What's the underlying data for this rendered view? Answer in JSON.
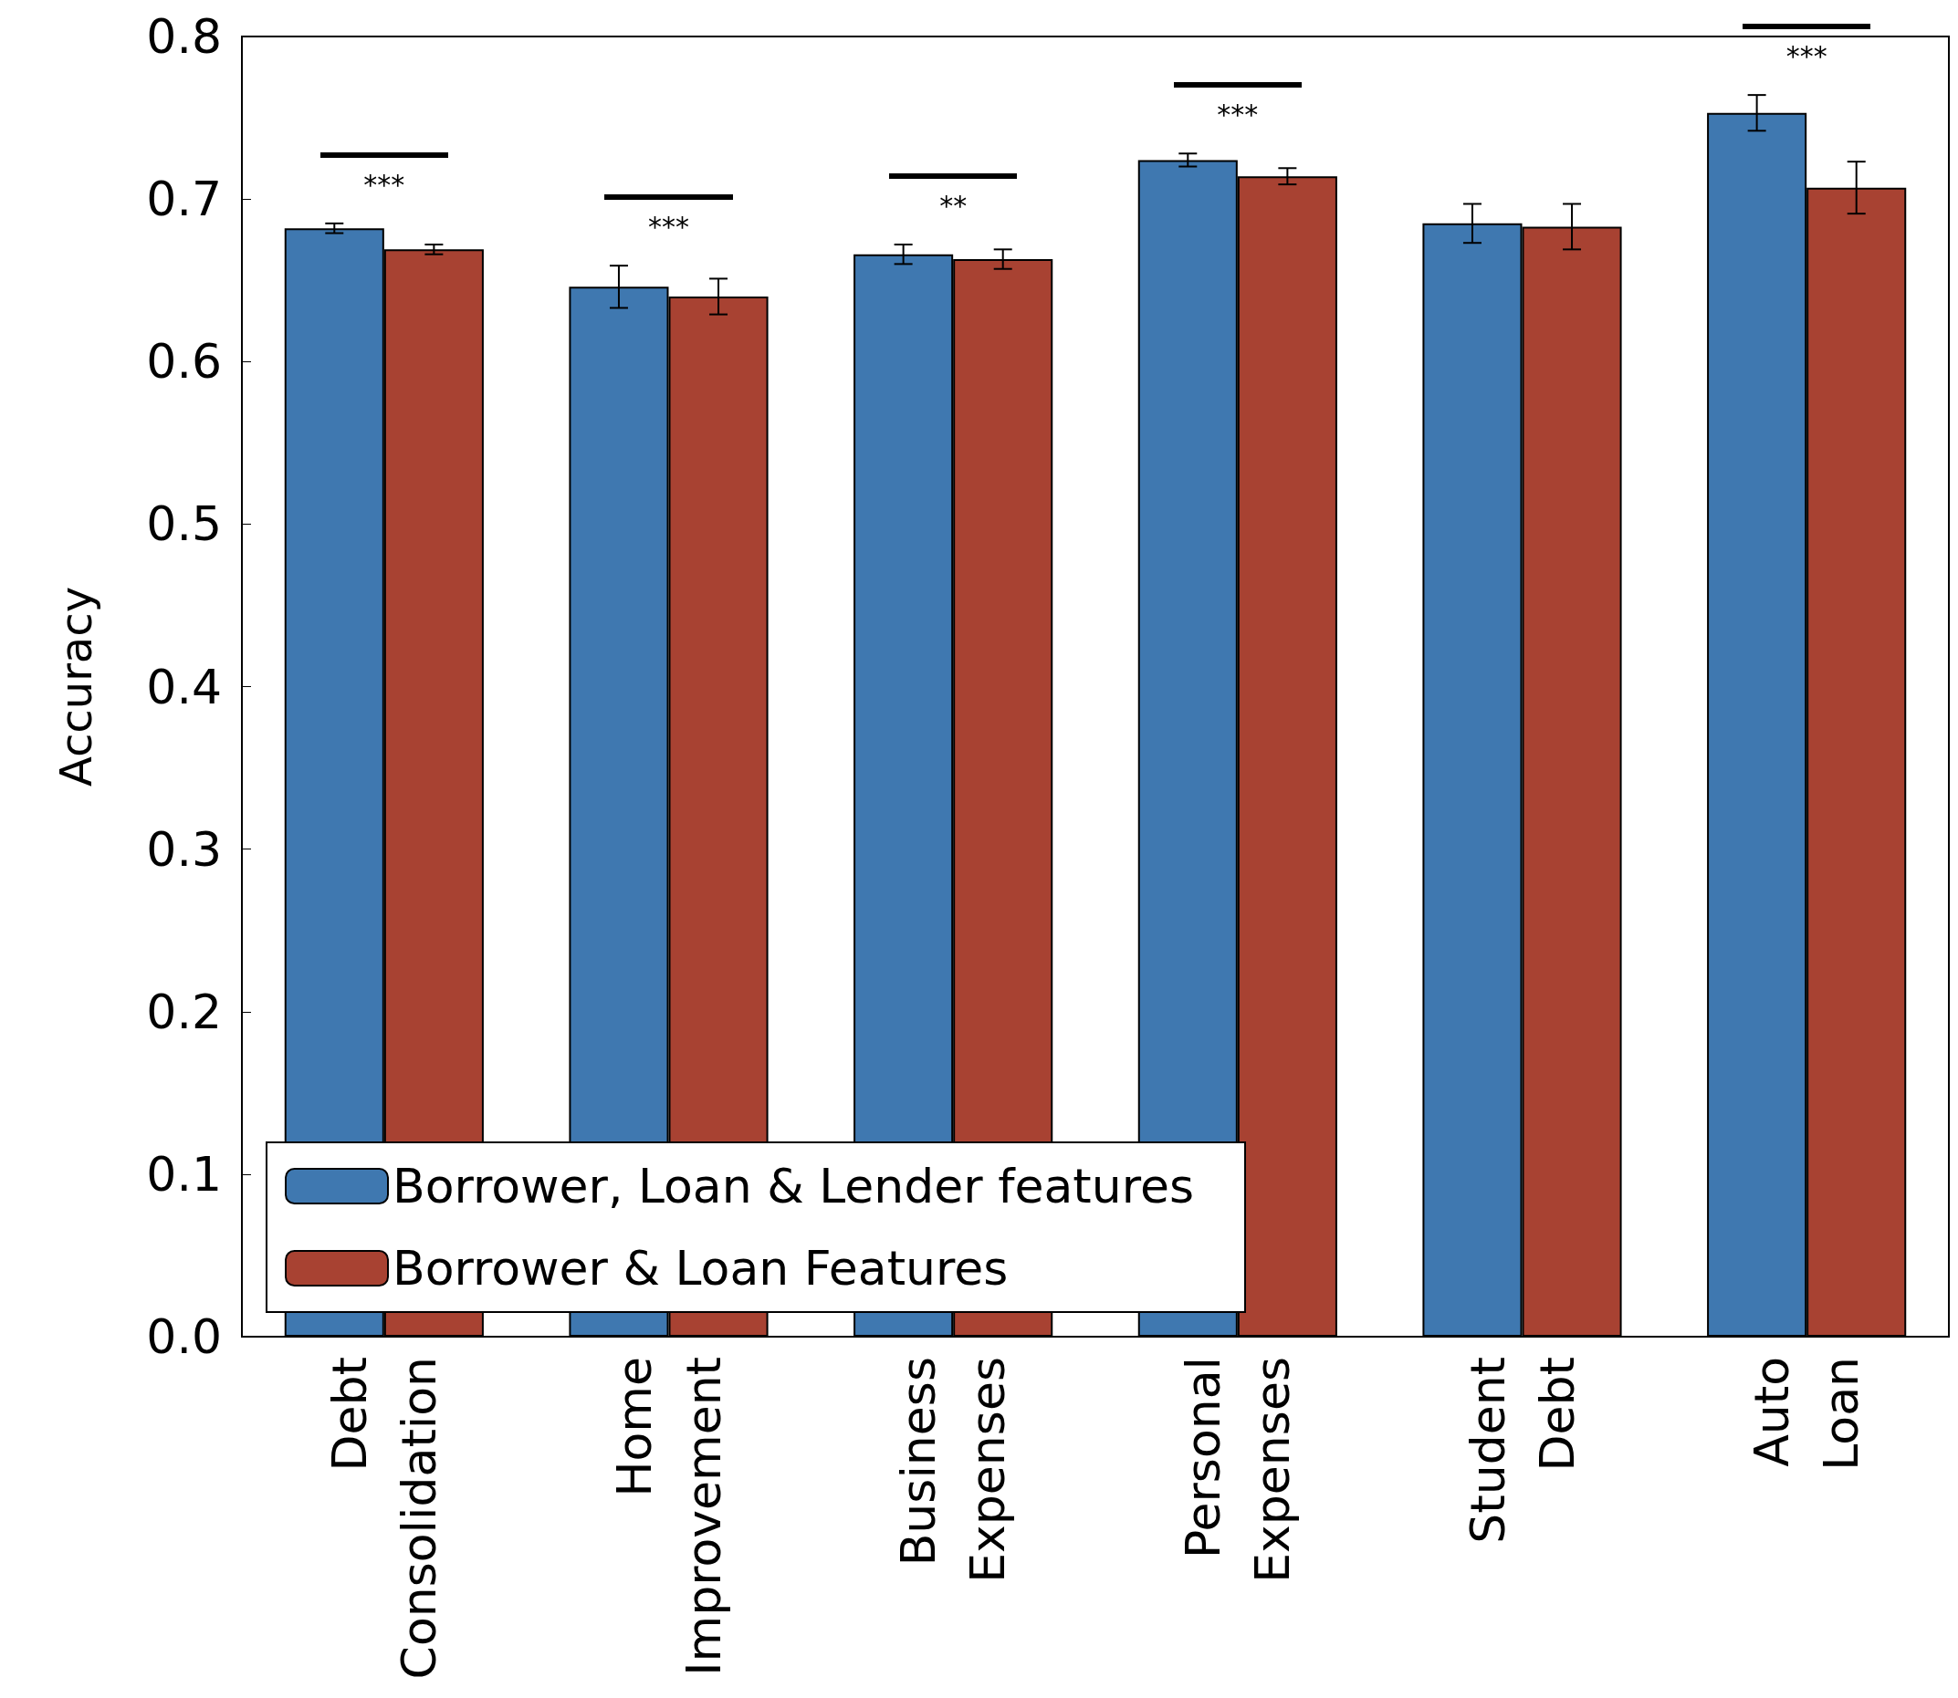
{
  "chart_data": {
    "type": "bar",
    "ylabel": "Accuracy",
    "categories": [
      "Debt Consolidation",
      "Home Improvement",
      "Business Expenses",
      "Personal Expenses",
      "Student Debt",
      "Auto Loan"
    ],
    "series": [
      {
        "name": "Borrower, Loan & Lender features",
        "color": "#3f78b0",
        "values": [
          0.682,
          0.646,
          0.666,
          0.724,
          0.685,
          0.753
        ],
        "errors": [
          0.003,
          0.013,
          0.006,
          0.004,
          0.012,
          0.011
        ]
      },
      {
        "name": "Borrower & Loan Features",
        "color": "#a84232",
        "values": [
          0.669,
          0.64,
          0.663,
          0.714,
          0.683,
          0.707
        ],
        "errors": [
          0.003,
          0.011,
          0.006,
          0.005,
          0.014,
          0.016
        ]
      }
    ],
    "ylim": [
      0,
      0.8
    ],
    "yticks": [
      {
        "value": 0,
        "label": "0.0"
      },
      0.1,
      0.2,
      0.3,
      0.4,
      0.5,
      0.6,
      0.7,
      0.8
    ],
    "grid": false,
    "legend": "bottom left",
    "annotations": [
      {
        "text": "***",
        "x": "Debt Consolidation",
        "y": 0.682
      },
      {
        "text": "***",
        "x": "Home Improvement",
        "y": 0.646
      },
      {
        "text": "**",
        "x": "Business Expenses",
        "y": 0.666
      },
      {
        "text": "***",
        "x": "Personal Expenses",
        "y": 0.724
      },
      {
        "text": "***",
        "x": "Auto Loan",
        "y": 0.753
      }
    ]
  }
}
